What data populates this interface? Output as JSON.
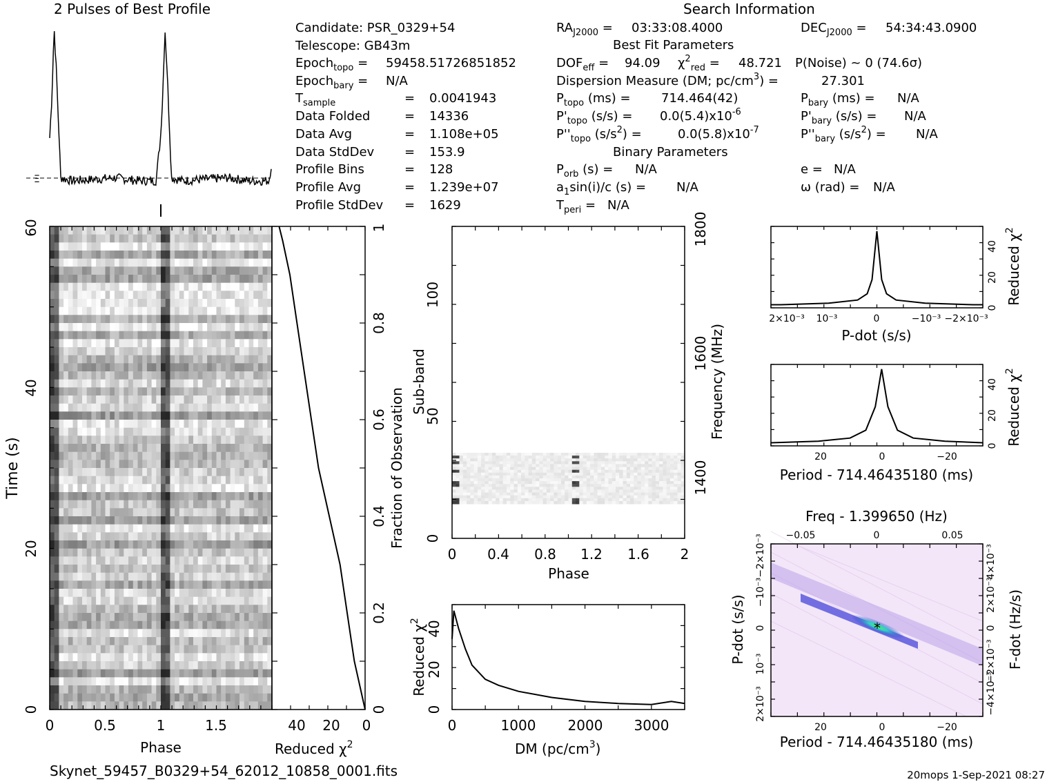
{
  "header": {
    "profile_title": "2 Pulses of Best Profile",
    "search_title": "Search Information",
    "best_fit_title": "Best Fit Parameters",
    "binary_title": "Binary Parameters",
    "filename": "Skynet_59457_B0329+54_62012_10858_0001.fits",
    "footer_right": "20mops   1-Sep-2021 08:27"
  },
  "info": {
    "candidate": "Candidate:  PSR_0329+54",
    "telescope": "Telescope:  GB43m",
    "epoch_topo": "59458.51726851852",
    "epoch_bary": "N/A",
    "t_sample": "0.0041943",
    "data_folded": "14336",
    "data_avg": "1.108e+05",
    "data_stddev": "153.9",
    "profile_bins": "128",
    "profile_avg": "1.239e+07",
    "profile_stddev": "1629",
    "labels": {
      "t_sample": "T",
      "data_folded": "Data Folded",
      "data_avg": "Data Avg",
      "data_stddev": "Data StdDev",
      "profile_bins": "Profile Bins",
      "profile_avg": "Profile Avg",
      "profile_stddev": "Profile StdDev"
    }
  },
  "search": {
    "ra": "03:33:08.4000",
    "dec": "54:34:43.0900",
    "dof": "94.09",
    "chi2_red": "48.721",
    "p_noise": "P(Noise) ~ 0    (74.6σ)",
    "dm": "27.301",
    "p_topo": "714.464(42)",
    "pd_topo": "0.0(5.4)x10",
    "pd_topo_exp": "-6",
    "pdd_topo": "0.0(5.8)x10",
    "pdd_topo_exp": "-7",
    "p_bary": "N/A",
    "pd_bary": "N/A",
    "pdd_bary": "N/A",
    "p_orb": "N/A",
    "a1sini": "N/A",
    "t_peri": "N/A",
    "e": "N/A",
    "omega": "N/A"
  },
  "axes": {
    "time_ylabel": "Time (s)",
    "phase_xlabel": "Phase",
    "redchi_xlabel": "Reduced χ",
    "frac_ylabel": "Fraction of Observation",
    "subband_ylabel": "Sub-band",
    "freq_ylabel": "Frequency (MHz)",
    "phase2_xlabel": "Phase",
    "dm_xlabel": "DM (pc/cm",
    "dm_ylabel": "Reduced χ",
    "pdot_xlabel": "P-dot (s/s)",
    "pdot_ylabel": "Reduced χ",
    "period_xlabel": "Period - 714.46435180 (ms)",
    "period_ylabel": "Reduced χ",
    "pp_top_xlabel": "Freq - 1.399650 (Hz)",
    "pp_xlabel": "Period - 714.46435180 (ms)",
    "pp_ylabel": "P-dot (s/s)",
    "pp_y2label": "F-dot (Hz/s)"
  },
  "ticks": {
    "time_y": [
      "0",
      "20",
      "40",
      "60"
    ],
    "phase_x": [
      "0",
      "0.5",
      "1",
      "1.5"
    ],
    "redchi_x": [
      "40",
      "20",
      "0"
    ],
    "frac_y": [
      "0",
      "0.2",
      "0.4",
      "0.6",
      "0.8",
      "1"
    ],
    "subband_y": [
      "0",
      "50",
      "100"
    ],
    "freq_y": [
      "1400",
      "1600",
      "1800"
    ],
    "phase2_x": [
      "0",
      "0.4",
      "0.8",
      "1.2",
      "1.6",
      "2"
    ],
    "dm_x": [
      "0",
      "1000",
      "2000",
      "3000"
    ],
    "dm_y": [
      "0",
      "20",
      "40"
    ],
    "pdot_x": [
      "2×10⁻³",
      "10⁻³",
      "0",
      "−10⁻³",
      "−2×10⁻³"
    ],
    "pdot_y": [
      "0",
      "20",
      "40"
    ],
    "period_x": [
      "20",
      "0",
      "−20"
    ],
    "period_y": [
      "0",
      "20",
      "40"
    ],
    "pp_x": [
      "20",
      "0",
      "−20"
    ],
    "pp_top_x": [
      "−0.05",
      "0",
      "0.05"
    ],
    "pp_y": [
      "2×10⁻³",
      "10⁻³",
      "0",
      "−10⁻³",
      "−2×10⁻³"
    ],
    "pp_y2": [
      "−4×10⁻³",
      "−2×10⁻³",
      "0",
      "2×10⁻³",
      "4×10⁻³"
    ]
  },
  "colors": {
    "ink": "#000000",
    "pp_bg": "#f1e4f7",
    "pp_band": "#2020c8",
    "pp_core": "#33cccc"
  },
  "chart_data": [
    {
      "type": "line",
      "title": "2 Pulses of Best Profile",
      "x": [
        0,
        0.02,
        0.04,
        0.06,
        0.1,
        0.2,
        0.4,
        0.6,
        0.8,
        0.96,
        1.0,
        1.02,
        1.04,
        1.06,
        1.1,
        1.2,
        1.4,
        1.6,
        1.8,
        1.98,
        2.0
      ],
      "y": [
        0.28,
        0.55,
        1.0,
        0.72,
        0.02,
        0.0,
        0.01,
        0.02,
        0.0,
        0.0,
        0.28,
        0.55,
        1.0,
        0.72,
        0.02,
        0.0,
        0.01,
        0.02,
        0.0,
        0.0,
        0.1
      ]
    },
    {
      "type": "line",
      "xlabel": "Reduced χ2",
      "ylabel": "Fraction of Observation",
      "x": [
        0,
        6,
        10,
        14,
        20,
        26,
        30,
        34,
        38,
        42,
        46,
        48
      ],
      "y": [
        0,
        0.1,
        0.2,
        0.3,
        0.4,
        0.5,
        0.6,
        0.7,
        0.8,
        0.9,
        0.97,
        1.0
      ],
      "xlim": [
        52,
        0
      ],
      "ylim": [
        0,
        1
      ]
    },
    {
      "type": "line",
      "xlabel": "DM (pc/cm3)",
      "ylabel": "Reduced χ2",
      "x": [
        0,
        27,
        100,
        200,
        300,
        500,
        700,
        1000,
        1500,
        2000,
        2500,
        3000,
        3300,
        3500
      ],
      "y": [
        35,
        49,
        40,
        30,
        22,
        15,
        12,
        9,
        6,
        4,
        3,
        2.5,
        4,
        3
      ],
      "xlim": [
        0,
        3500
      ],
      "ylim": [
        0,
        52
      ]
    },
    {
      "type": "line",
      "xlabel": "P-dot (s/s)",
      "ylabel": "Reduced χ2",
      "x": [
        0.0022,
        0.002,
        0.001,
        0.0004,
        0.0002,
        0.0001,
        0,
        -0.0001,
        -0.0002,
        -0.0004,
        -0.001,
        -0.002,
        -0.0022
      ],
      "y": [
        2,
        2,
        3,
        5,
        9,
        18,
        49,
        18,
        9,
        5,
        3,
        2,
        2
      ],
      "xlim": [
        0.0022,
        -0.0022
      ],
      "ylim": [
        0,
        52
      ]
    },
    {
      "type": "line",
      "xlabel": "Period - 714.46435180 (ms)",
      "ylabel": "Reduced χ2",
      "x": [
        35,
        20,
        10,
        5,
        2,
        0,
        -2,
        -5,
        -10,
        -20,
        -32
      ],
      "y": [
        2,
        3,
        5,
        10,
        25,
        49,
        25,
        10,
        5,
        3,
        2
      ],
      "xlim": [
        35,
        -32
      ],
      "ylim": [
        0,
        52
      ]
    }
  ]
}
